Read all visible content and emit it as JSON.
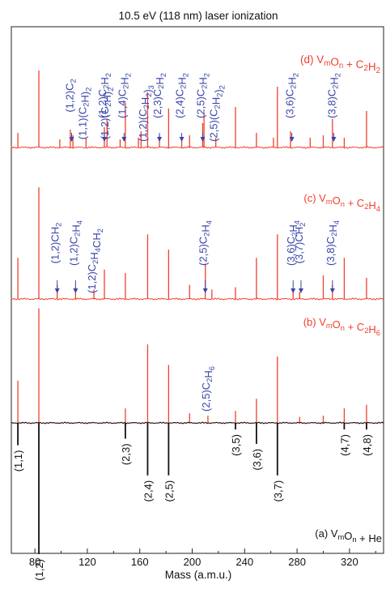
{
  "chart_data": {
    "type": "line",
    "title": "10.5 eV (118 nm) laser ionization",
    "xlabel": "Mass (a.m.u.)",
    "xlim": [
      62,
      346
    ],
    "xticks": [
      80,
      120,
      160,
      200,
      240,
      280,
      320
    ],
    "colors": {
      "spectrum": "#f0402e",
      "reference": "#111111",
      "label": "#3a45a8"
    },
    "panels": [
      {
        "id": "d",
        "legend": "(d) V_mO_n + C_2H_2",
        "peaks": [
          {
            "mass": 67,
            "h": 0.18
          },
          {
            "mass": 83,
            "h": 0.95
          },
          {
            "mass": 99,
            "h": 0.1
          },
          {
            "mass": 107,
            "h": 0.22
          },
          {
            "mass": 109,
            "h": 0.15
          },
          {
            "mass": 119,
            "h": 0.12
          },
          {
            "mass": 133,
            "h": 0.25
          },
          {
            "mass": 135,
            "h": 0.35
          },
          {
            "mass": 145,
            "h": 0.1
          },
          {
            "mass": 149,
            "h": 0.55
          },
          {
            "mass": 159,
            "h": 0.12
          },
          {
            "mass": 161,
            "h": 0.2
          },
          {
            "mass": 166,
            "h": 0.68
          },
          {
            "mass": 175,
            "h": 0.15
          },
          {
            "mass": 182,
            "h": 0.48
          },
          {
            "mass": 192,
            "h": 0.1
          },
          {
            "mass": 198,
            "h": 0.15
          },
          {
            "mass": 208,
            "h": 0.3
          },
          {
            "mass": 209,
            "h": 0.42
          },
          {
            "mass": 218,
            "h": 0.12
          },
          {
            "mass": 233,
            "h": 0.5
          },
          {
            "mass": 249,
            "h": 0.18
          },
          {
            "mass": 262,
            "h": 0.12
          },
          {
            "mass": 265,
            "h": 0.75
          },
          {
            "mass": 275,
            "h": 0.2
          },
          {
            "mass": 290,
            "h": 0.12
          },
          {
            "mass": 300,
            "h": 0.15
          },
          {
            "mass": 307,
            "h": 0.35
          },
          {
            "mass": 316,
            "h": 0.12
          },
          {
            "mass": 333,
            "h": 0.45
          }
        ]
      },
      {
        "id": "c",
        "legend": "(c) V_mO_n + C_2H_4",
        "peaks": [
          {
            "mass": 67,
            "h": 0.35
          },
          {
            "mass": 83,
            "h": 0.95
          },
          {
            "mass": 97,
            "h": 0.12
          },
          {
            "mass": 111,
            "h": 0.1
          },
          {
            "mass": 125,
            "h": 0.08
          },
          {
            "mass": 133,
            "h": 0.25
          },
          {
            "mass": 149,
            "h": 0.22
          },
          {
            "mass": 166,
            "h": 0.55
          },
          {
            "mass": 182,
            "h": 0.42
          },
          {
            "mass": 198,
            "h": 0.12
          },
          {
            "mass": 210,
            "h": 0.3
          },
          {
            "mass": 215,
            "h": 0.08
          },
          {
            "mass": 233,
            "h": 0.1
          },
          {
            "mass": 249,
            "h": 0.35
          },
          {
            "mass": 265,
            "h": 0.55
          },
          {
            "mass": 277,
            "h": 0.08
          },
          {
            "mass": 282,
            "h": 0.06
          },
          {
            "mass": 300,
            "h": 0.2
          },
          {
            "mass": 307,
            "h": 0.12
          },
          {
            "mass": 316,
            "h": 0.35
          },
          {
            "mass": 333,
            "h": 0.18
          }
        ]
      },
      {
        "id": "b",
        "legend": "(b) V_mO_n + C_2H_6",
        "peaks": [
          {
            "mass": 67,
            "h": 0.35
          },
          {
            "mass": 83,
            "h": 0.95
          },
          {
            "mass": 149,
            "h": 0.12
          },
          {
            "mass": 166,
            "h": 0.65
          },
          {
            "mass": 182,
            "h": 0.48
          },
          {
            "mass": 198,
            "h": 0.08
          },
          {
            "mass": 212,
            "h": 0.06
          },
          {
            "mass": 233,
            "h": 0.1
          },
          {
            "mass": 249,
            "h": 0.2
          },
          {
            "mass": 265,
            "h": 0.55
          },
          {
            "mass": 282,
            "h": 0.05
          },
          {
            "mass": 300,
            "h": 0.06
          },
          {
            "mass": 316,
            "h": 0.12
          },
          {
            "mass": 333,
            "h": 0.15
          }
        ]
      },
      {
        "id": "a",
        "legend": "(a) V_mO_n + He",
        "inverted": true,
        "peaks": [
          {
            "mass": 67,
            "h": 0.17
          },
          {
            "mass": 83,
            "h": 1.0
          },
          {
            "mass": 149,
            "h": 0.12
          },
          {
            "mass": 166,
            "h": 0.4
          },
          {
            "mass": 182,
            "h": 0.4
          },
          {
            "mass": 233,
            "h": 0.05
          },
          {
            "mass": 249,
            "h": 0.16
          },
          {
            "mass": 265,
            "h": 0.4
          },
          {
            "mass": 316,
            "h": 0.05
          },
          {
            "mass": 333,
            "h": 0.05
          }
        ]
      }
    ],
    "annotations": [
      {
        "panel": "d",
        "mass": 108,
        "text": "(1,2)C_2"
      },
      {
        "panel": "d",
        "mass": 118,
        "text": "(1,1)(C_2H)_2"
      },
      {
        "panel": "d",
        "mass": 133,
        "text": "(1,2)C_2H_2"
      },
      {
        "panel": "d",
        "mass": 135,
        "text": "(1,2)(C_2H)_2"
      },
      {
        "panel": "d",
        "mass": 148,
        "text": "(1,4)C_2H_2"
      },
      {
        "panel": "d",
        "mass": 164,
        "text": "(1,2)(C_2H_2)_3"
      },
      {
        "panel": "d",
        "mass": 175,
        "text": "(2,3)C_2H_2"
      },
      {
        "panel": "d",
        "mass": 192,
        "text": "(2,4)C_2H_2"
      },
      {
        "panel": "d",
        "mass": 208,
        "text": "(2,5)C_2H_2"
      },
      {
        "panel": "d",
        "mass": 218,
        "text": "(2,5)(C_2H_2)_2"
      },
      {
        "panel": "d",
        "mass": 276,
        "text": "(3,6)C_2H_2"
      },
      {
        "panel": "d",
        "mass": 308,
        "text": "(3,8)C_2H_2"
      },
      {
        "panel": "c",
        "mass": 97,
        "text": "(1,2)CH_2"
      },
      {
        "panel": "c",
        "mass": 111,
        "text": "(1,2)C_2H_4"
      },
      {
        "panel": "c",
        "mass": 125,
        "text": "(1,2)C_2H_4CH_2"
      },
      {
        "panel": "c",
        "mass": 210,
        "text": "(2,5)C_2H_4"
      },
      {
        "panel": "c",
        "mass": 277,
        "text": "(3,6)C_2H_4"
      },
      {
        "panel": "c",
        "mass": 283,
        "text": "(3,7)CH_2"
      },
      {
        "panel": "c",
        "mass": 307,
        "text": "(3,8)C_2H_4"
      },
      {
        "panel": "b",
        "mass": 212,
        "text": "(2,5)C_2H_6"
      },
      {
        "panel": "a",
        "mass": 67,
        "text": "(1,1)"
      },
      {
        "panel": "a",
        "mass": 83,
        "text": "(1,2)"
      },
      {
        "panel": "a",
        "mass": 149,
        "text": "(2,3)"
      },
      {
        "panel": "a",
        "mass": 166,
        "text": "(2,4)"
      },
      {
        "panel": "a",
        "mass": 182,
        "text": "(2,5)"
      },
      {
        "panel": "a",
        "mass": 233,
        "text": "(3,5)"
      },
      {
        "panel": "a",
        "mass": 249,
        "text": "(3,6)"
      },
      {
        "panel": "a",
        "mass": 265,
        "text": "(3,7)"
      },
      {
        "panel": "a",
        "mass": 316,
        "text": "(4,7)"
      },
      {
        "panel": "a",
        "mass": 333,
        "text": "(4,8)"
      }
    ]
  }
}
